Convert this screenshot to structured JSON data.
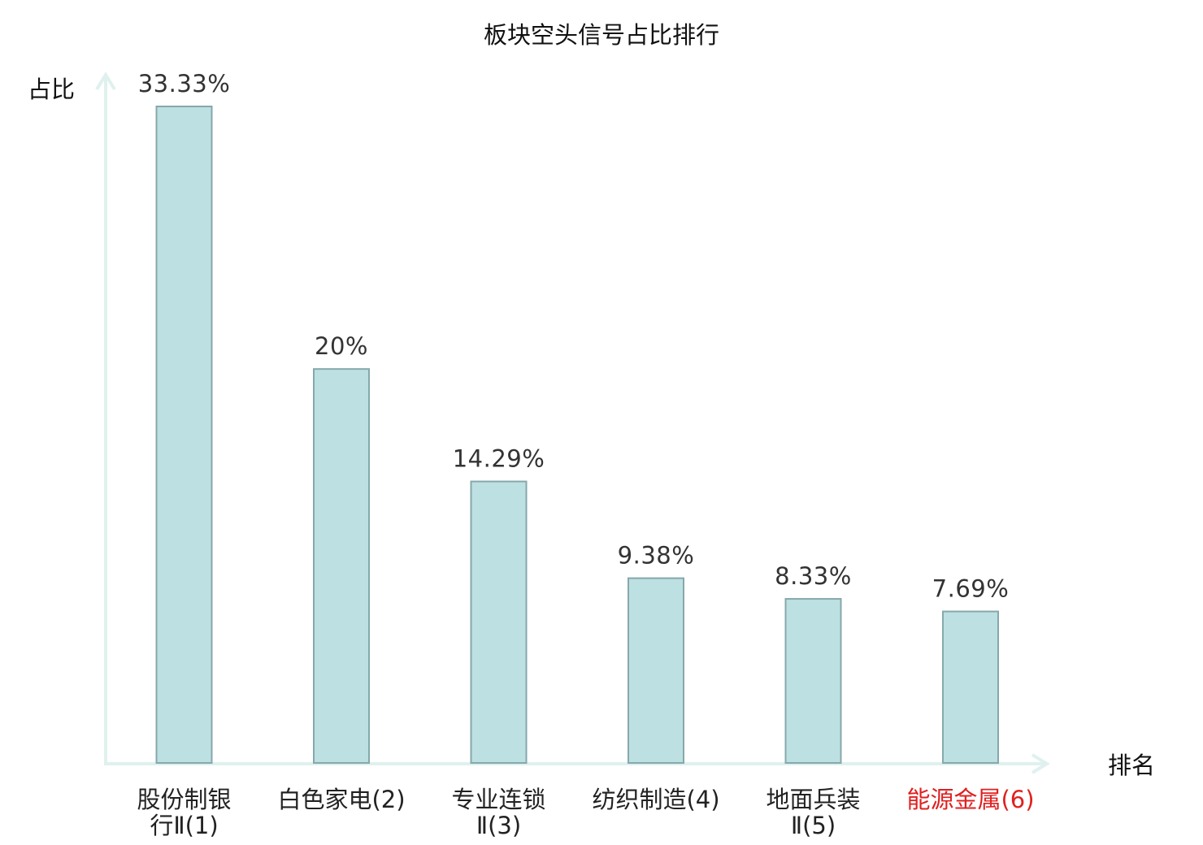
{
  "chart_data": {
    "type": "bar",
    "title": "板块空头信号占比排行",
    "ylabel": "占比",
    "xlabel": "排名",
    "categories": [
      [
        "股份制银",
        "行Ⅱ(1)"
      ],
      [
        "白色家电(2)"
      ],
      [
        "专业连锁",
        "Ⅱ(3)"
      ],
      [
        "纺织制造(4)"
      ],
      [
        "地面兵装",
        "Ⅱ(5)"
      ],
      [
        "能源金属(6)"
      ]
    ],
    "values": [
      33.33,
      20,
      14.29,
      9.38,
      8.33,
      7.69
    ],
    "value_labels": [
      "33.33%",
      "20%",
      "14.29%",
      "9.38%",
      "8.33%",
      "7.69%"
    ],
    "highlight_index": 5,
    "ylim": [
      0,
      33.33
    ],
    "grid": false
  },
  "colors": {
    "bar_fill": "#bde0e3",
    "bar_stroke": "#86a8ab",
    "axis": "#dff1ee",
    "highlight_label": "#e02020"
  }
}
